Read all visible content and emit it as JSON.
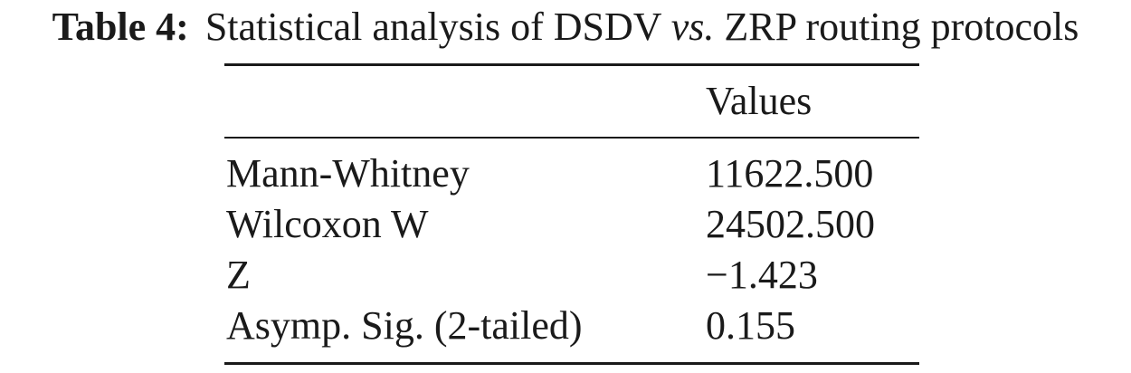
{
  "caption": {
    "label": "Table 4:",
    "text_before": "Statistical analysis of DSDV ",
    "italic": "vs.",
    "text_after": " ZRP routing protocols"
  },
  "table": {
    "header": {
      "label": "",
      "value": "Values"
    },
    "rows": [
      {
        "label": "Mann-Whitney",
        "value": "11622.500"
      },
      {
        "label": "Wilcoxon W",
        "value": "24502.500"
      },
      {
        "label": "Z",
        "value": "−1.423"
      },
      {
        "label": "Asymp. Sig. (2-tailed)",
        "value": "0.155"
      }
    ]
  }
}
